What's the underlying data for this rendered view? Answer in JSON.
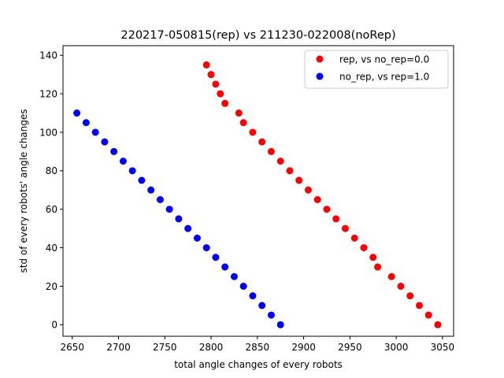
{
  "chart_data": {
    "type": "scatter",
    "title": "220217-050815(rep) vs 211230-022008(noRep)",
    "xlabel": "total angle changes of every robots",
    "ylabel": "std of every robots' angle changes",
    "xlim": [
      2640,
      3062
    ],
    "ylim": [
      -6,
      145
    ],
    "xticks": [
      2650,
      2700,
      2750,
      2800,
      2850,
      2900,
      2950,
      3000,
      3050
    ],
    "yticks": [
      0,
      20,
      40,
      60,
      80,
      100,
      120,
      140
    ],
    "grid": false,
    "legend_position": "top-right",
    "series": [
      {
        "name": "rep, vs no_rep=0.0",
        "color": "#ff0000",
        "points": [
          [
            2795,
            135
          ],
          [
            2800,
            130
          ],
          [
            2805,
            125
          ],
          [
            2810,
            120
          ],
          [
            2815,
            115
          ],
          [
            2830,
            110
          ],
          [
            2835,
            105
          ],
          [
            2845,
            100
          ],
          [
            2855,
            95
          ],
          [
            2865,
            90
          ],
          [
            2875,
            85
          ],
          [
            2885,
            80
          ],
          [
            2895,
            75
          ],
          [
            2905,
            70
          ],
          [
            2915,
            65
          ],
          [
            2925,
            60
          ],
          [
            2935,
            55
          ],
          [
            2945,
            50
          ],
          [
            2955,
            45
          ],
          [
            2965,
            40
          ],
          [
            2975,
            35
          ],
          [
            2980,
            30
          ],
          [
            2995,
            25
          ],
          [
            3005,
            20
          ],
          [
            3015,
            15
          ],
          [
            3025,
            10
          ],
          [
            3035,
            5
          ],
          [
            3045,
            0
          ]
        ]
      },
      {
        "name": "no_rep, vs rep=1.0",
        "color": "#0000ff",
        "points": [
          [
            2655,
            110
          ],
          [
            2665,
            105
          ],
          [
            2675,
            100
          ],
          [
            2685,
            95
          ],
          [
            2695,
            90
          ],
          [
            2705,
            85
          ],
          [
            2715,
            80
          ],
          [
            2725,
            75
          ],
          [
            2735,
            70
          ],
          [
            2745,
            65
          ],
          [
            2755,
            60
          ],
          [
            2765,
            55
          ],
          [
            2775,
            50
          ],
          [
            2785,
            45
          ],
          [
            2795,
            40
          ],
          [
            2805,
            35
          ],
          [
            2815,
            30
          ],
          [
            2825,
            25
          ],
          [
            2835,
            20
          ],
          [
            2845,
            15
          ],
          [
            2855,
            10
          ],
          [
            2865,
            5
          ],
          [
            2875,
            0
          ]
        ]
      }
    ]
  }
}
